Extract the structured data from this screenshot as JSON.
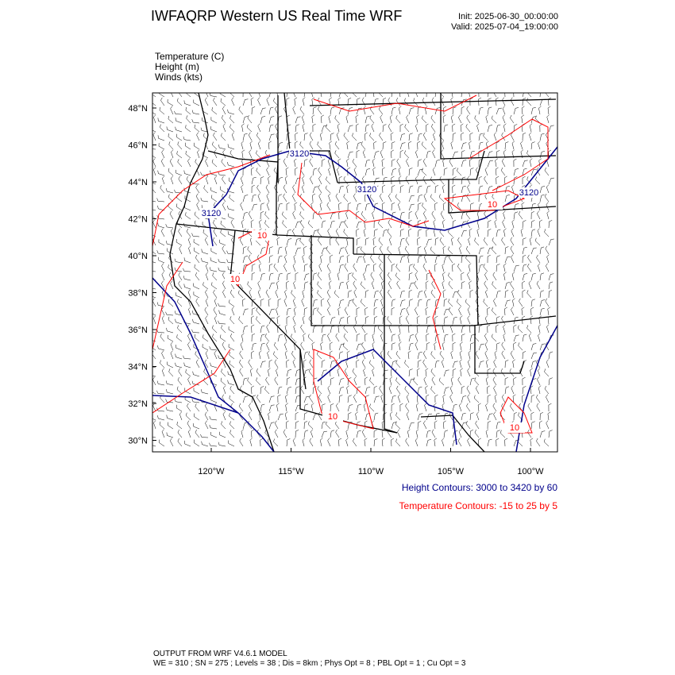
{
  "header": {
    "title": "IWFAQRP Western US Real Time WRF",
    "init": "Init: 2025-06-30_00:00:00",
    "valid": "Valid: 2025-07-04_19:00:00"
  },
  "fields": [
    "Temperature   (C)",
    "Height   (m)",
    "Winds   (kts)"
  ],
  "map": {
    "lat_labels": [
      "48°N",
      "46°N",
      "44°N",
      "42°N",
      "40°N",
      "38°N",
      "36°N",
      "34°N",
      "32°N",
      "30°N"
    ],
    "lon_labels": [
      "120°W",
      "115°W",
      "110°W",
      "105°W",
      "100°W"
    ],
    "contour_labels": [
      "3120",
      "3120",
      "3120",
      "3120",
      "10",
      "10",
      "10",
      "10",
      "10"
    ]
  },
  "legend": {
    "height": "Height Contours: 3000 to 3420 by 60",
    "temperature": "Temperature Contours: -15 to 25 by 5"
  },
  "footer": [
    "OUTPUT FROM WRF V4.6.1 MODEL",
    "WE = 310 ; SN = 275 ; Levels = 38 ; Dis = 8km ; Phys Opt = 8 ; PBL Opt = 1 ; Cu Opt = 3"
  ]
}
